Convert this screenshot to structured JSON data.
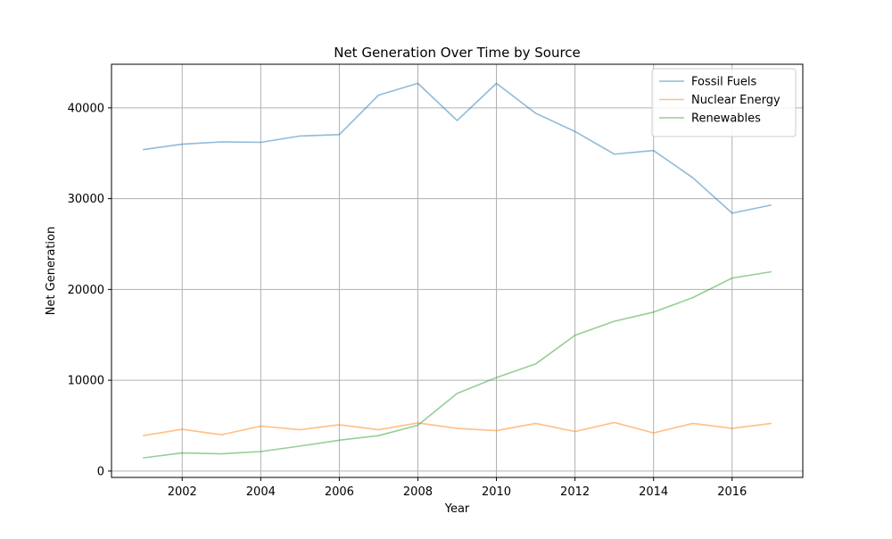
{
  "chart_data": {
    "type": "line",
    "title": "Net Generation Over Time by Source",
    "xlabel": "Year",
    "ylabel": "Net Generation",
    "xlim": [
      2000.2,
      2017.8
    ],
    "ylim": [
      -700,
      44800
    ],
    "x_ticks": [
      2002,
      2004,
      2006,
      2008,
      2010,
      2012,
      2014,
      2016
    ],
    "y_ticks": [
      0,
      10000,
      20000,
      30000,
      40000
    ],
    "grid": true,
    "legend_position": "top-right",
    "x": [
      2001,
      2002,
      2003,
      2004,
      2005,
      2006,
      2007,
      2008,
      2009,
      2010,
      2011,
      2012,
      2013,
      2014,
      2015,
      2016,
      2017
    ],
    "series": [
      {
        "name": "Fossil Fuels",
        "color": "#1f77b4",
        "values": [
          35400,
          36000,
          36250,
          36200,
          36900,
          37050,
          41400,
          42700,
          38600,
          42700,
          39400,
          37400,
          34900,
          35300,
          32300,
          28400,
          29300
        ]
      },
      {
        "name": "Nuclear Energy",
        "color": "#ff7f0e",
        "values": [
          3900,
          4600,
          4000,
          4950,
          4550,
          5100,
          4550,
          5300,
          4700,
          4450,
          5250,
          4350,
          5350,
          4200,
          5250,
          4700,
          5250
        ]
      },
      {
        "name": "Renewables",
        "color": "#2ca02c",
        "values": [
          1450,
          2000,
          1900,
          2150,
          2750,
          3400,
          3900,
          5050,
          8550,
          10300,
          11800,
          14950,
          16500,
          17500,
          19100,
          21250,
          21950
        ]
      }
    ]
  }
}
